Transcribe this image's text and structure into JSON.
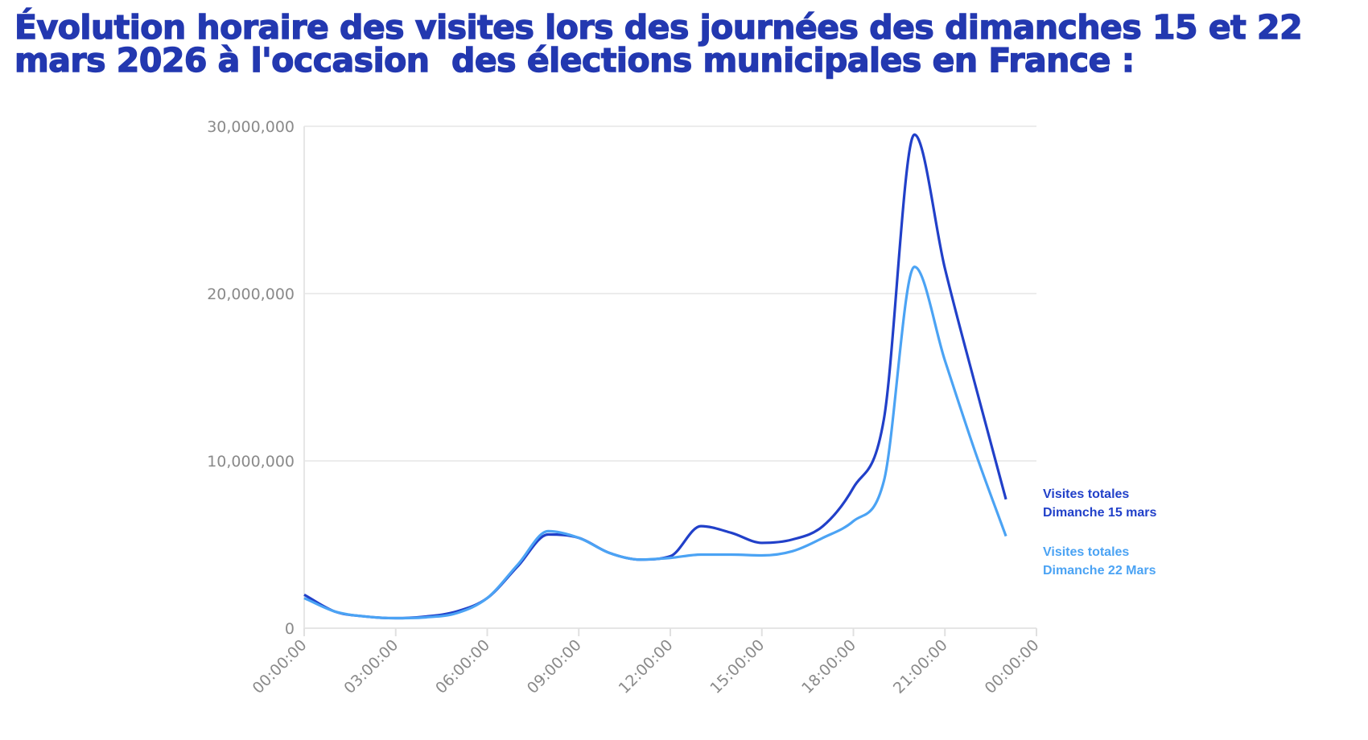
{
  "title_lines": [
    "Évolution horaire des visites lors des journées des dimanches 15 et 22",
    "mars 2026 à l'occasion  des élections municipales en France :"
  ],
  "chart_data": {
    "type": "line",
    "title": "Évolution horaire des visites lors des journées des dimanches 15 et 22 mars 2026 à l'occasion  des élections municipales en France :",
    "xlabel": "",
    "ylabel": "",
    "x_tick_labels": [
      "00:00:00",
      "03:00:00",
      "06:00:00",
      "09:00:00",
      "12:00:00",
      "15:00:00",
      "18:00:00",
      "21:00:00",
      "00:00:00"
    ],
    "y_tick_labels": [
      "0",
      "10,000,000",
      "20,000,000",
      "30,000,000"
    ],
    "xlim_hours": [
      0,
      24
    ],
    "ylim": [
      0,
      30000000
    ],
    "grid": "horizontal",
    "legend": "right (end-of-line labels)",
    "x_hours": [
      0,
      1,
      2,
      3,
      4,
      5,
      6,
      7,
      8,
      9,
      10,
      11,
      12,
      13,
      14,
      15,
      16,
      17,
      18,
      19,
      20,
      21,
      22,
      23
    ],
    "series": [
      {
        "name": "Visites totales Dimanche 15 mars",
        "label_lines": [
          "Visites totales",
          "Dimanche 15 mars"
        ],
        "color": "#2140c9",
        "values": [
          2000000,
          1000000,
          700000,
          600000,
          700000,
          1000000,
          1800000,
          3700000,
          5600000,
          5400000,
          4500000,
          4100000,
          4300000,
          6100000,
          5700000,
          5100000,
          5300000,
          6100000,
          8400000,
          12500000,
          29500000,
          21500000,
          14500000,
          7700000
        ]
      },
      {
        "name": "Visites totales Dimanche 22 Mars",
        "label_lines": [
          "Visites totales",
          "Dimanche 22 Mars"
        ],
        "color": "#4ba3f4",
        "values": [
          1800000,
          1000000,
          700000,
          600000,
          650000,
          900000,
          1800000,
          3800000,
          5800000,
          5400000,
          4500000,
          4100000,
          4200000,
          4400000,
          4400000,
          4350000,
          4600000,
          5400000,
          6400000,
          8800000,
          21600000,
          16000000,
          10500000,
          5500000
        ]
      }
    ]
  }
}
